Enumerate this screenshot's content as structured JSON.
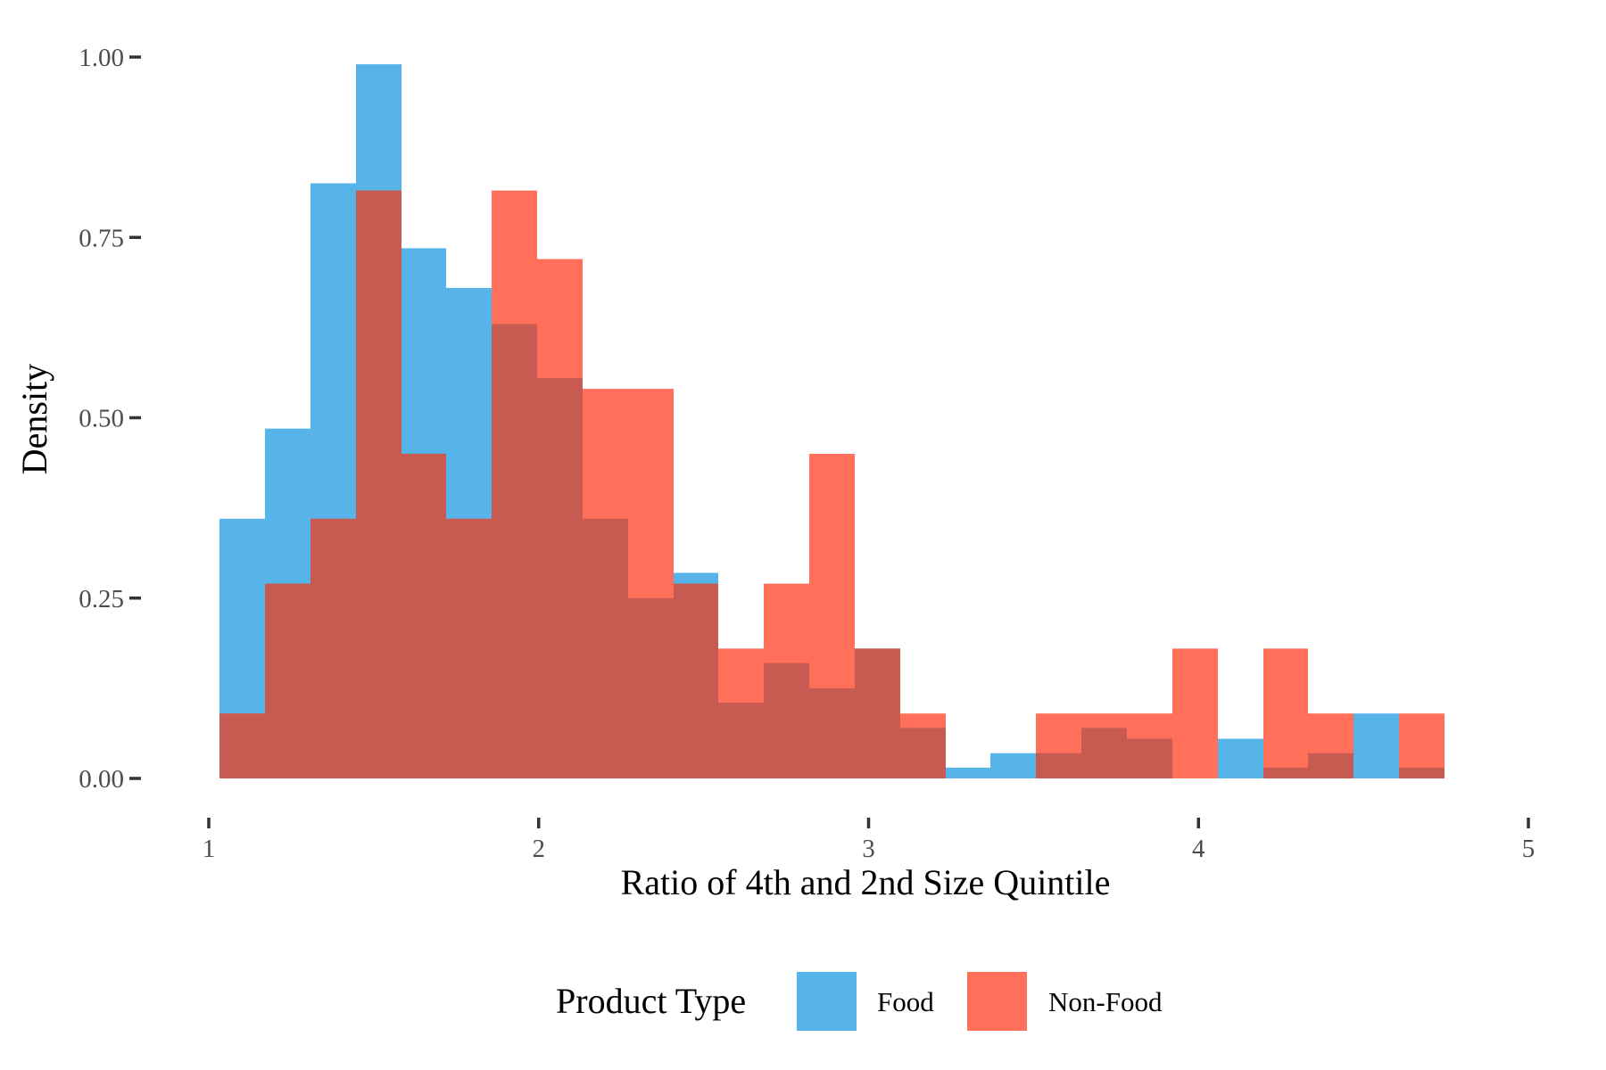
{
  "chart_data": {
    "type": "histogram",
    "xlabel": "Ratio of 4th and 2nd Size Quintile",
    "ylabel": "Density",
    "xlim": [
      1,
      5
    ],
    "ylim": [
      0,
      1
    ],
    "x_ticks": [
      "1",
      "2",
      "3",
      "4",
      "5"
    ],
    "y_ticks": [
      "0.00",
      "0.25",
      "0.50",
      "0.75",
      "1.00"
    ],
    "grid": false,
    "bin_start": 1.033,
    "bin_width": 0.1375,
    "series": [
      {
        "name": "Food",
        "color": "#56B4E9",
        "values": [
          0.36,
          0.485,
          0.825,
          0.99,
          0.735,
          0.68,
          0.63,
          0.555,
          0.36,
          0.25,
          0.285,
          0.105,
          0.16,
          0.125,
          0.18,
          0.07,
          0.015,
          0.035,
          0.035,
          0.07,
          0.055,
          0.0,
          0.055,
          0.015,
          0.035,
          0.09,
          0.015
        ]
      },
      {
        "name": "Non-Food",
        "color": "#FF6F59",
        "values": [
          0.09,
          0.27,
          0.36,
          0.815,
          0.45,
          0.36,
          0.815,
          0.72,
          0.54,
          0.54,
          0.27,
          0.18,
          0.27,
          0.45,
          0.18,
          0.09,
          0.0,
          0.0,
          0.09,
          0.09,
          0.09,
          0.18,
          0.0,
          0.18,
          0.09,
          0.0,
          0.09
        ]
      }
    ],
    "legend": {
      "title": "Product Type",
      "position": "bottom"
    }
  }
}
